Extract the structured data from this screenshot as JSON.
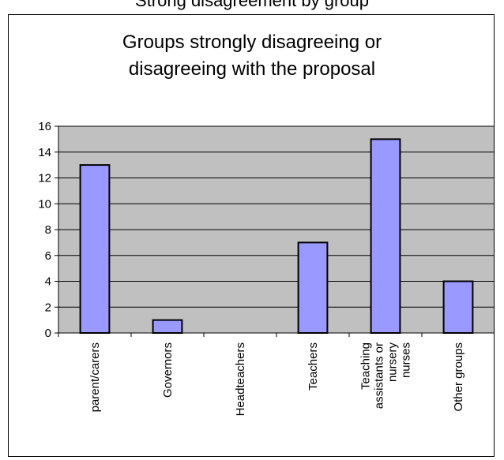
{
  "page": {
    "top_caption": "Strong disagreement by group"
  },
  "chart_data": {
    "type": "bar",
    "title": "Groups strongly disagreeing or\ndisagreeing with the proposal",
    "categories": [
      "parent/carers",
      "Governors",
      "Headteachers",
      "Teachers",
      "Teaching\nassistants or\nnursery\nnurses",
      "Other groups"
    ],
    "values": [
      13,
      1,
      0,
      7,
      15,
      4
    ],
    "ylim": [
      0,
      16
    ],
    "yticks": [
      "0",
      "2",
      "4",
      "6",
      "8",
      "10",
      "12",
      "14",
      "16"
    ],
    "xlabel": "",
    "ylabel": "",
    "grid": true,
    "legend": "none",
    "colors": {
      "plot_bg": "#c0c0c0",
      "bar_fill": "#9999ff",
      "bar_stroke": "#000000",
      "grid": "#000000"
    }
  }
}
